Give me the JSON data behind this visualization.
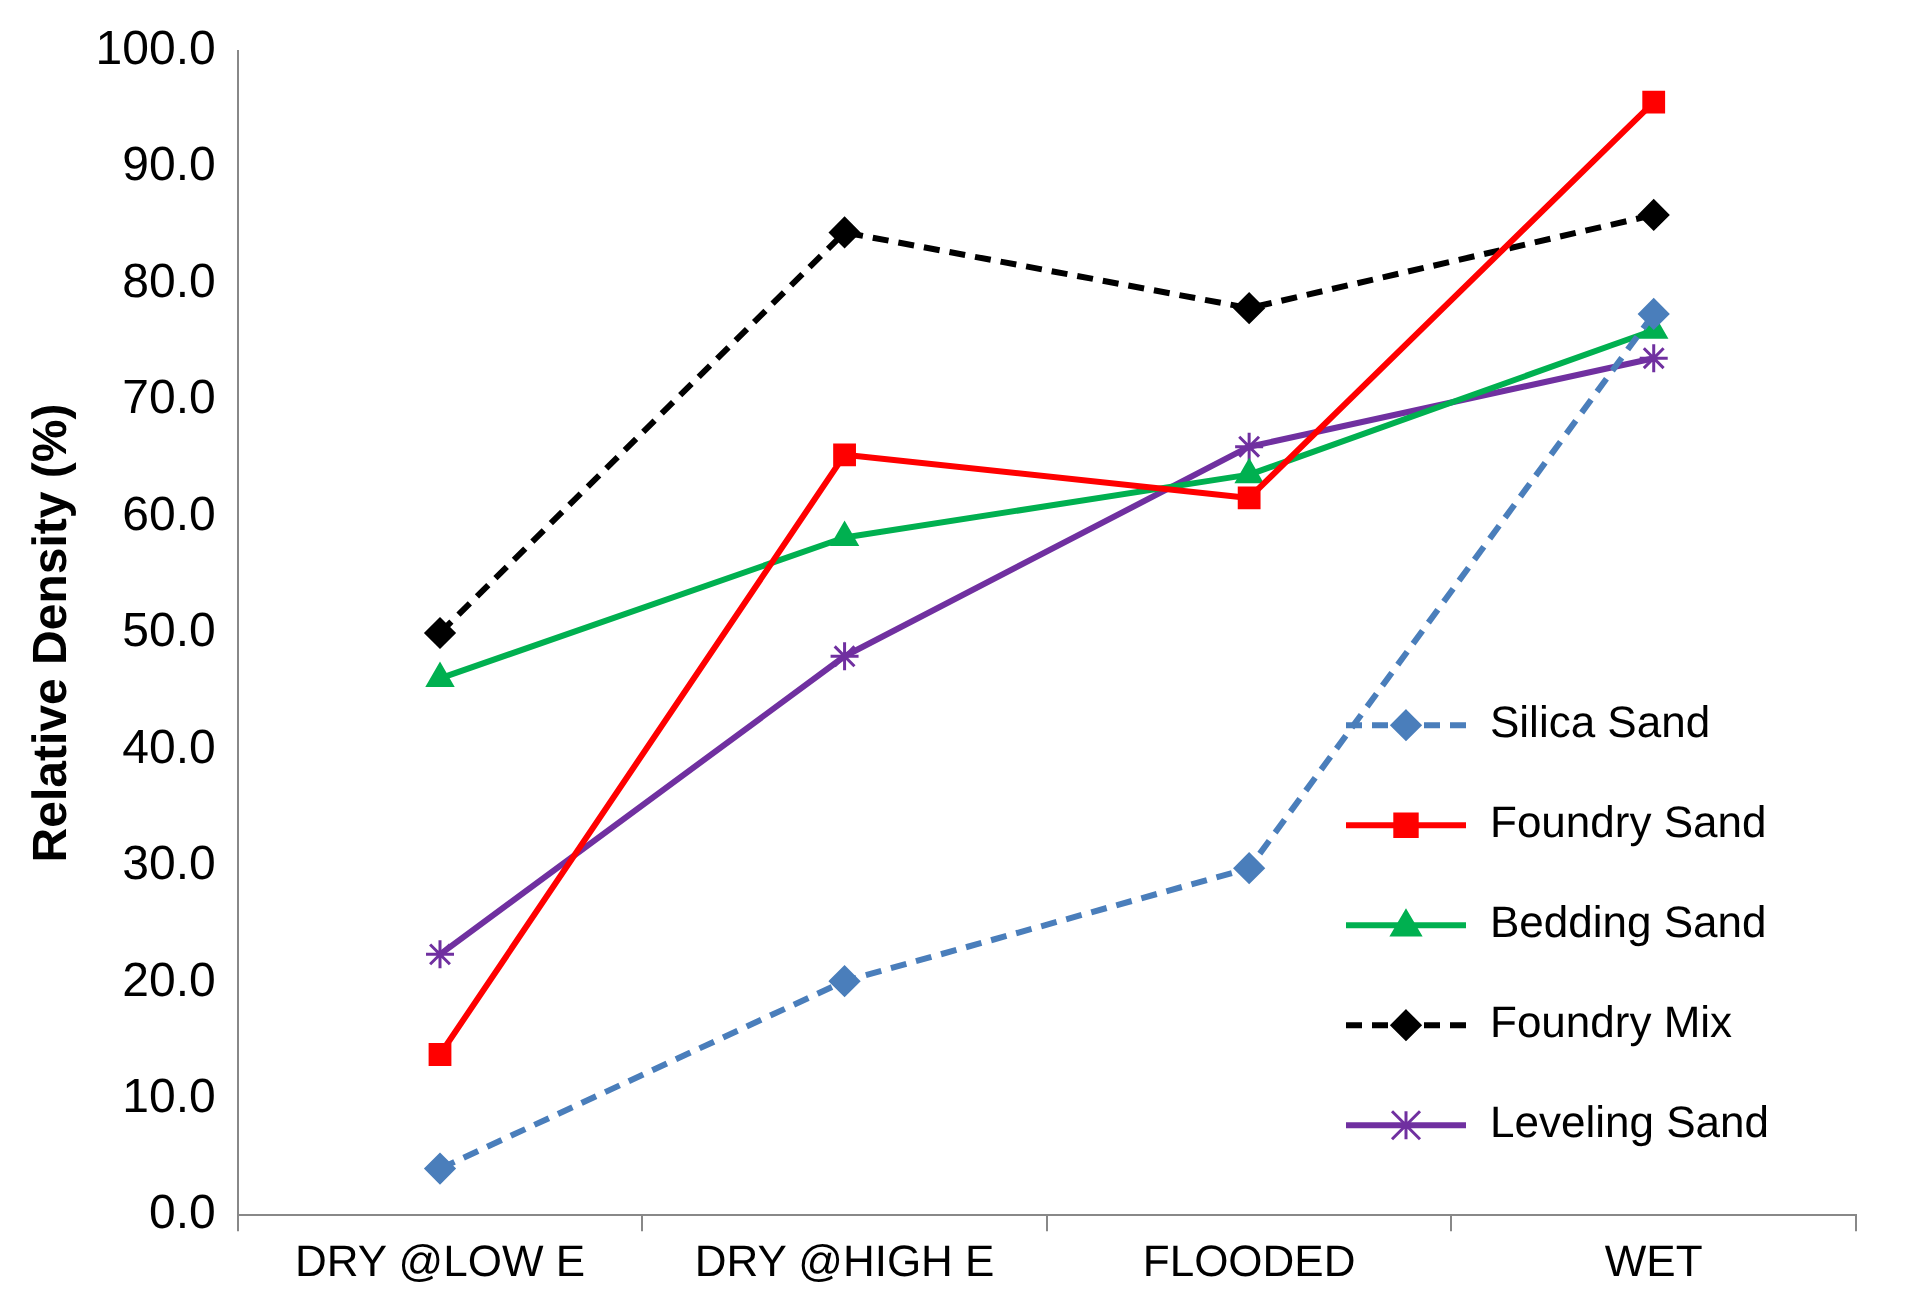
{
  "chart_data": {
    "type": "line",
    "ylabel": "Relative Density (%)",
    "categories": [
      "DRY @LOW E",
      "DRY @HIGH E",
      "FLOODED",
      "WET"
    ],
    "ylim": [
      0,
      100
    ],
    "yticks": [
      {
        "value": 0,
        "label": "0.0"
      },
      {
        "value": 10,
        "label": "10.0"
      },
      {
        "value": 20,
        "label": "20.0"
      },
      {
        "value": 30,
        "label": "30.0"
      },
      {
        "value": 40,
        "label": "40.0"
      },
      {
        "value": 50,
        "label": "50.0"
      },
      {
        "value": 60,
        "label": "60.0"
      },
      {
        "value": 70,
        "label": "70.0"
      },
      {
        "value": 80,
        "label": "80.0"
      },
      {
        "value": 90,
        "label": "90.0"
      },
      {
        "value": 100,
        "label": "100.0"
      }
    ],
    "grid": false,
    "legend": "bottom right",
    "series": [
      {
        "name": "Silica Sand",
        "color": "#4a7ebb",
        "values": [
          4.0,
          20.1,
          29.8,
          77.4
        ],
        "marker": "diamond",
        "line_style": "dashed"
      },
      {
        "name": "Foundry Sand",
        "color": "#ff0000",
        "values": [
          13.8,
          65.3,
          61.6,
          95.6
        ],
        "marker": "square",
        "line_style": "solid"
      },
      {
        "name": "Bedding Sand",
        "color": "#00b050",
        "values": [
          46.1,
          58.2,
          63.6,
          76.0
        ],
        "marker": "triangle",
        "line_style": "solid"
      },
      {
        "name": "Foundry Mix",
        "color": "#000000",
        "values": [
          50.0,
          84.4,
          77.9,
          85.9
        ],
        "marker": "diamond",
        "line_style": "dashed"
      },
      {
        "name": "Leveling Sand",
        "color": "#7030a0",
        "values": [
          22.4,
          48.0,
          66.0,
          73.6
        ],
        "marker": "cross",
        "line_style": "solid"
      }
    ]
  }
}
